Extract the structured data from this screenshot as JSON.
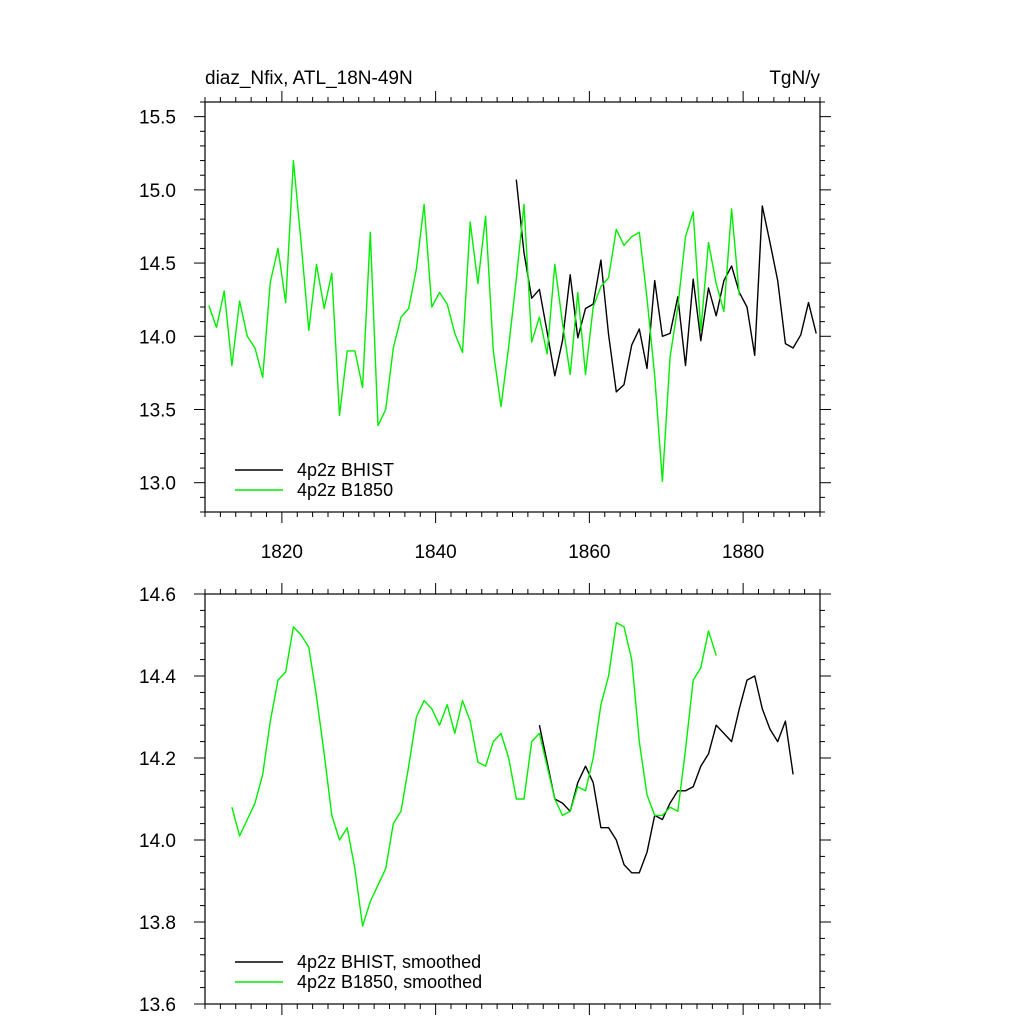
{
  "colors": {
    "series_black": "#000000",
    "series_green": "#00ee00",
    "axis": "#000000"
  },
  "chart_data": [
    {
      "type": "line",
      "title": "diaz_Nfix, ATL_18N-49N",
      "units": "TgN/y",
      "xlim": [
        1810,
        1890
      ],
      "ylim": [
        12.8,
        15.6
      ],
      "xticks": [
        1820,
        1840,
        1860,
        1880
      ],
      "xtick_labels": [
        "1820",
        "1840",
        "1860",
        "1880"
      ],
      "yticks": [
        13.0,
        13.5,
        14.0,
        14.5,
        15.0,
        15.5
      ],
      "ytick_labels": [
        "13.0",
        "13.5",
        "14.0",
        "14.5",
        "15.0",
        "15.5"
      ],
      "series": [
        {
          "name": "4p2z BHIST",
          "color": "#000000",
          "x_start": 1850.5,
          "x_step": 1,
          "values": [
            15.07,
            14.57,
            14.26,
            14.32,
            14.03,
            13.73,
            13.97,
            14.42,
            13.99,
            14.19,
            14.22,
            14.52,
            14.01,
            13.62,
            13.67,
            13.94,
            14.05,
            13.78,
            14.38,
            14.0,
            14.02,
            14.27,
            13.8,
            14.39,
            13.97,
            14.33,
            14.14,
            14.38,
            14.48,
            14.3,
            14.2,
            13.87,
            14.89,
            14.64,
            14.38,
            13.95,
            13.92,
            14.01,
            14.23,
            14.02
          ]
        },
        {
          "name": "4p2z B1850",
          "color": "#00ee00",
          "x_start": 1810.5,
          "x_step": 1,
          "values": [
            14.21,
            14.06,
            14.31,
            13.8,
            14.24,
            14.0,
            13.92,
            13.72,
            14.37,
            14.6,
            14.23,
            15.2,
            14.64,
            14.04,
            14.49,
            14.19,
            14.43,
            13.46,
            13.9,
            13.9,
            13.65,
            14.71,
            13.39,
            13.5,
            13.92,
            14.13,
            14.19,
            14.46,
            14.9,
            14.2,
            14.3,
            14.22,
            14.02,
            13.89,
            14.78,
            14.36,
            14.82,
            13.9,
            13.52,
            13.93,
            14.39,
            14.9,
            13.96,
            14.13,
            13.88,
            14.49,
            14.09,
            13.74,
            14.3,
            13.74,
            14.2,
            14.34,
            14.4,
            14.73,
            14.62,
            14.68,
            14.71,
            14.26,
            13.73,
            13.01,
            13.86,
            14.2,
            14.68,
            14.85,
            14.04,
            14.64,
            14.36,
            14.17,
            14.87,
            14.28
          ]
        }
      ],
      "legend": [
        "4p2z BHIST",
        "4p2z B1850"
      ]
    },
    {
      "type": "line",
      "title": "",
      "xlim": [
        1810,
        1890
      ],
      "ylim": [
        13.6,
        14.6
      ],
      "xticks": [
        1820,
        1840,
        1860,
        1880
      ],
      "yticks": [
        13.6,
        13.8,
        14.0,
        14.2,
        14.4,
        14.6
      ],
      "ytick_labels": [
        "13.6",
        "13.8",
        "14.0",
        "14.2",
        "14.4",
        "14.6"
      ],
      "series": [
        {
          "name": "4p2z BHIST, smoothed",
          "color": "#000000",
          "x_start": 1853.5,
          "x_step": 1,
          "values": [
            14.28,
            14.19,
            14.1,
            14.09,
            14.07,
            14.14,
            14.18,
            14.14,
            14.03,
            14.03,
            14.0,
            13.94,
            13.92,
            13.92,
            13.97,
            14.06,
            14.05,
            14.09,
            14.12,
            14.12,
            14.13,
            14.18,
            14.21,
            14.28,
            14.26,
            14.24,
            14.32,
            14.39,
            14.4,
            14.32,
            14.27,
            14.24,
            14.29,
            14.16
          ]
        },
        {
          "name": "4p2z B1850, smoothed",
          "color": "#00ee00",
          "x_start": 1813.5,
          "x_step": 1,
          "values": [
            14.08,
            14.01,
            14.05,
            14.09,
            14.16,
            14.29,
            14.39,
            14.41,
            14.52,
            14.5,
            14.47,
            14.35,
            14.21,
            14.06,
            14.0,
            14.03,
            13.93,
            13.79,
            13.85,
            13.89,
            13.93,
            14.04,
            14.07,
            14.18,
            14.3,
            14.34,
            14.32,
            14.28,
            14.33,
            14.26,
            14.34,
            14.29,
            14.19,
            14.18,
            14.24,
            14.26,
            14.2,
            14.1,
            14.1,
            14.24,
            14.26,
            14.18,
            14.1,
            14.06,
            14.07,
            14.13,
            14.12,
            14.2,
            14.33,
            14.4,
            14.53,
            14.52,
            14.44,
            14.24,
            14.11,
            14.06,
            14.06,
            14.08,
            14.07,
            14.22,
            14.39,
            14.42,
            14.51,
            14.45
          ]
        }
      ],
      "legend": [
        "4p2z BHIST, smoothed",
        "4p2z B1850, smoothed"
      ]
    }
  ]
}
